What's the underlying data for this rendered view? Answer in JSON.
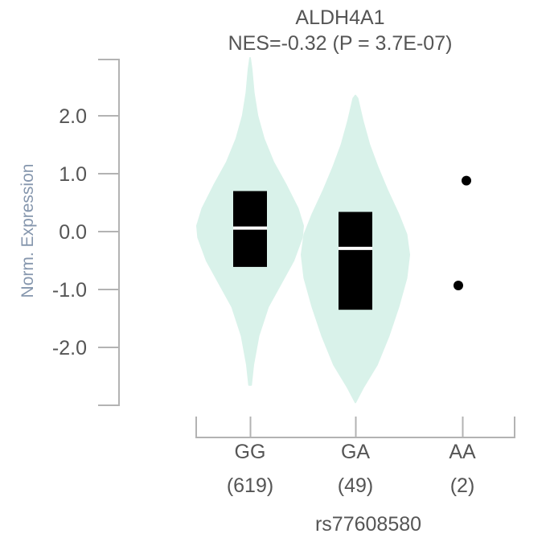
{
  "chart_data": {
    "type": "violin",
    "title": "ALDH4A1",
    "subtitle": "NES=-0.32 (P = 3.7E-07)",
    "ylabel": "Norm. Expression",
    "xlabel": "rs77608580",
    "ylim": [
      -2.95,
      3.0
    ],
    "yticks": [
      2.0,
      1.0,
      0.0,
      -1.0,
      -2.0
    ],
    "ytick_labels": [
      "2.0",
      "1.0",
      "0.0",
      "-1.0",
      "-2.0"
    ],
    "grid": false,
    "colors": {
      "violin": "#d9f2ea",
      "box": "#000000",
      "median": "#ffffff",
      "point": "#000000",
      "axis": "#b3b3b3"
    },
    "groups": [
      {
        "genotype": "GG",
        "count": "(619)",
        "median": 0.06,
        "q1": -0.61,
        "q3": 0.7,
        "violin_profile": [
          [
            -2.65,
            0.02
          ],
          [
            -2.3,
            0.06
          ],
          [
            -1.8,
            0.16
          ],
          [
            -1.3,
            0.34
          ],
          [
            -0.9,
            0.58
          ],
          [
            -0.5,
            0.82
          ],
          [
            -0.1,
            0.98
          ],
          [
            0.1,
            1.0
          ],
          [
            0.4,
            0.9
          ],
          [
            0.8,
            0.68
          ],
          [
            1.2,
            0.44
          ],
          [
            1.6,
            0.26
          ],
          [
            2.0,
            0.14
          ],
          [
            2.4,
            0.07
          ],
          [
            2.8,
            0.03
          ],
          [
            3.0,
            0.0
          ]
        ],
        "points": []
      },
      {
        "genotype": "GA",
        "count": "(49)",
        "median": -0.29,
        "q1": -1.35,
        "q3": 0.34,
        "violin_profile": [
          [
            -2.95,
            0.0
          ],
          [
            -2.7,
            0.14
          ],
          [
            -2.3,
            0.4
          ],
          [
            -1.8,
            0.62
          ],
          [
            -1.3,
            0.8
          ],
          [
            -0.8,
            0.95
          ],
          [
            -0.4,
            1.0
          ],
          [
            -0.05,
            0.95
          ],
          [
            0.3,
            0.8
          ],
          [
            0.7,
            0.6
          ],
          [
            1.1,
            0.42
          ],
          [
            1.5,
            0.26
          ],
          [
            1.9,
            0.14
          ],
          [
            2.3,
            0.04
          ],
          [
            2.35,
            0.0
          ]
        ],
        "points": []
      },
      {
        "genotype": "AA",
        "count": "(2)",
        "median": null,
        "q1": null,
        "q3": null,
        "violin_profile": [],
        "points": [
          0.88,
          -0.93
        ]
      }
    ]
  }
}
